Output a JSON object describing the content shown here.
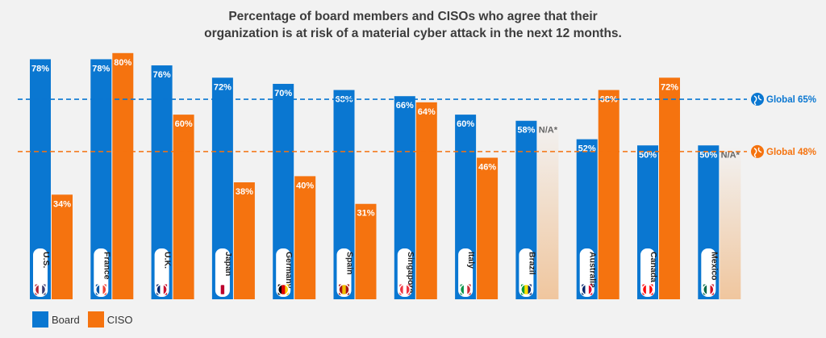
{
  "title_line1": "Percentage of board members and CISOs who agree that their",
  "title_line2": "organization is at risk of a material cyber attack in the next 12 months.",
  "colors": {
    "board": "#0a77d1",
    "ciso": "#f5730f",
    "na_text": "#666666"
  },
  "legend": {
    "board": "Board",
    "ciso": "CISO"
  },
  "chart_data": {
    "type": "bar",
    "title": "Percentage of board members and CISOs who agree that their organization is at risk of a material cyber attack in the next 12 months.",
    "ylim": [
      0,
      100
    ],
    "grid": false,
    "legend_position": "bottom-left",
    "categories": [
      "U.S.",
      "France",
      "U.K.",
      "Japan",
      "Germany",
      "Spain",
      "Singapore",
      "Italy",
      "Brazil",
      "Australia",
      "Canada",
      "Mexico"
    ],
    "series": [
      {
        "name": "Board",
        "values": [
          78,
          78,
          76,
          72,
          70,
          68,
          66,
          60,
          58,
          52,
          50,
          50
        ],
        "labels": [
          "78%",
          "78%",
          "76%",
          "72%",
          "70%",
          "68%",
          "66%",
          "60%",
          "58%",
          "52%",
          "50%",
          "50%"
        ]
      },
      {
        "name": "CISO",
        "values": [
          34,
          80,
          60,
          38,
          40,
          31,
          64,
          46,
          null,
          68,
          72,
          null
        ],
        "labels": [
          "34%",
          "80%",
          "60%",
          "38%",
          "40%",
          "31%",
          "64%",
          "46%",
          "N/A*",
          "68%",
          "72%",
          "N/A*"
        ]
      }
    ],
    "reference_lines": [
      {
        "label": "Global 65%",
        "value": 65,
        "series": "Board"
      },
      {
        "label": "Global 48%",
        "value": 48,
        "series": "CISO"
      }
    ]
  }
}
